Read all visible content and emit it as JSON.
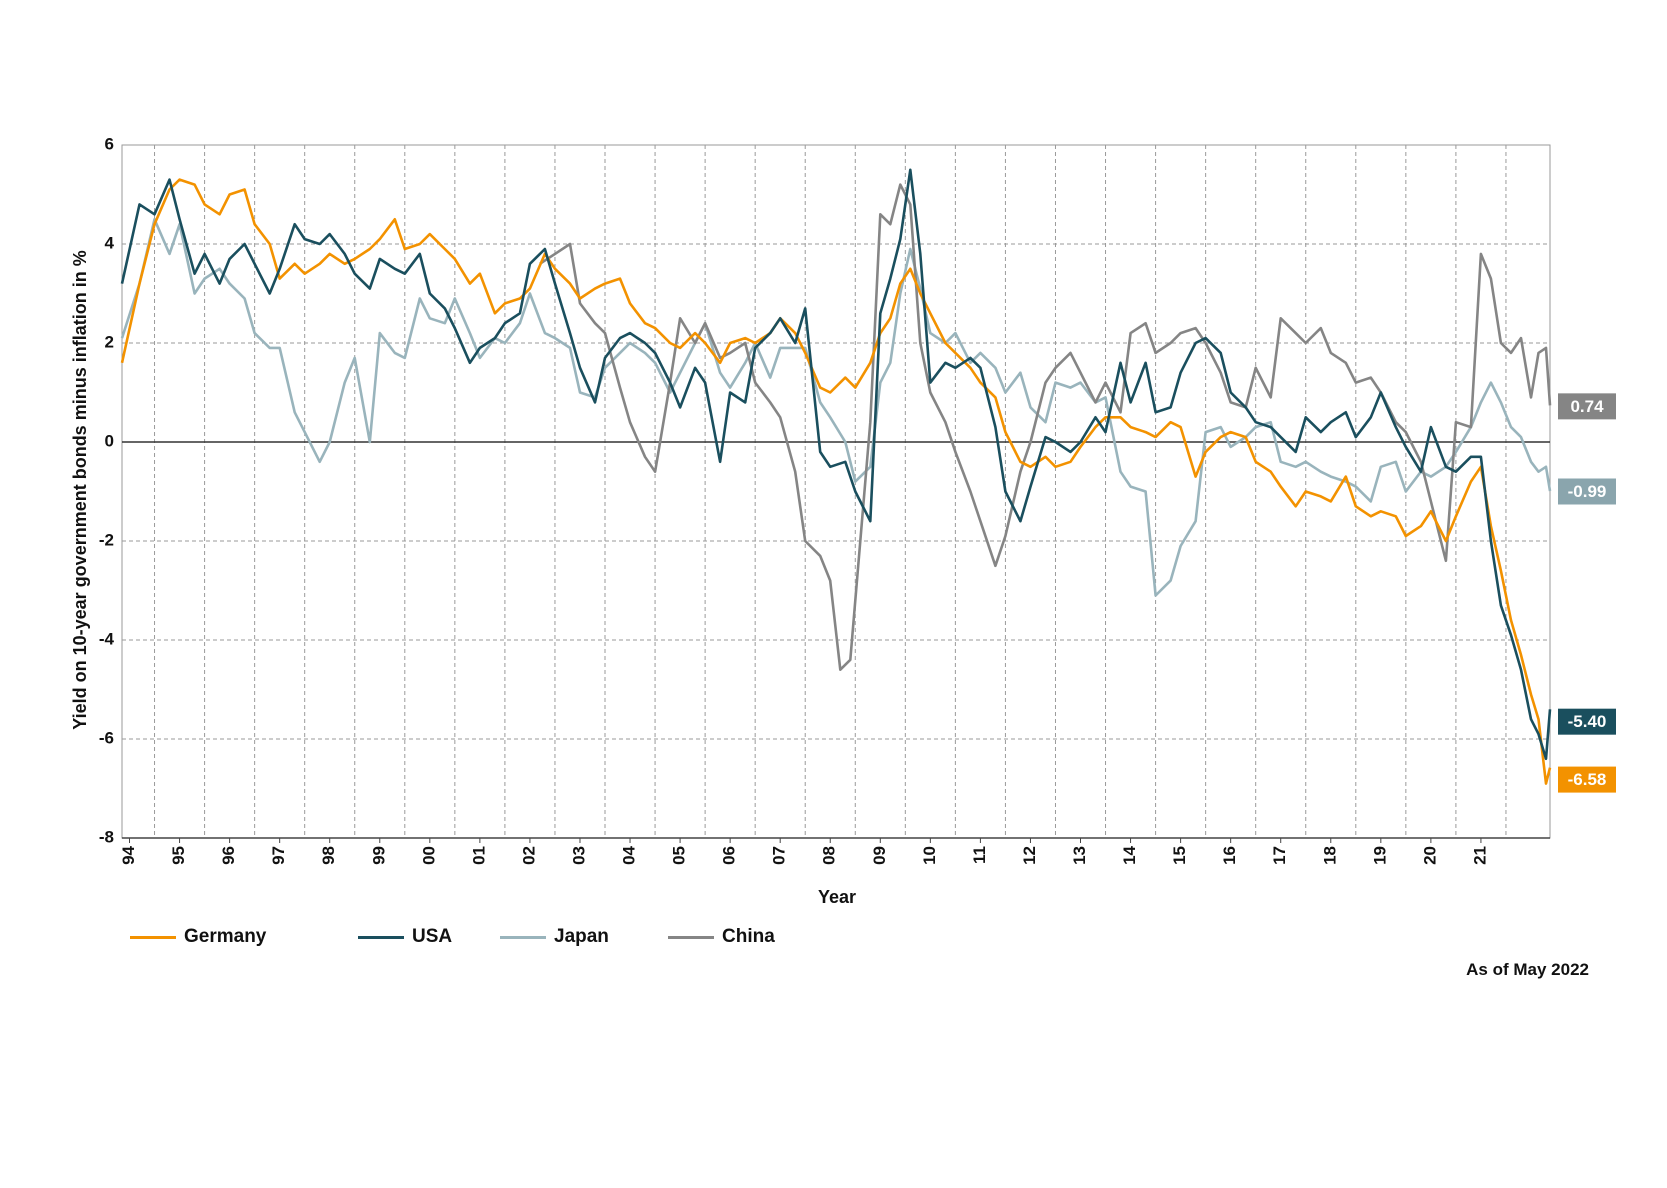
{
  "chart_data": {
    "type": "line",
    "title": "",
    "xlabel": "Year",
    "ylabel": "Yield on 10-year government bonds minus inflation in %",
    "ylim": [
      -8,
      6
    ],
    "yticks": [
      6,
      4,
      2,
      0,
      -2,
      -4,
      -6,
      -8
    ],
    "xlim": [
      1993.85,
      2022.38
    ],
    "xticks": [
      {
        "year": 1994,
        "label": "94"
      },
      {
        "year": 1995,
        "label": "95"
      },
      {
        "year": 1996,
        "label": "96"
      },
      {
        "year": 1997,
        "label": "97"
      },
      {
        "year": 1998,
        "label": "98"
      },
      {
        "year": 1999,
        "label": "99"
      },
      {
        "year": 2000,
        "label": "00"
      },
      {
        "year": 2001,
        "label": "01"
      },
      {
        "year": 2002,
        "label": "02"
      },
      {
        "year": 2003,
        "label": "03"
      },
      {
        "year": 2004,
        "label": "04"
      },
      {
        "year": 2005,
        "label": "05"
      },
      {
        "year": 2006,
        "label": "06"
      },
      {
        "year": 2007,
        "label": "07"
      },
      {
        "year": 2008,
        "label": "08"
      },
      {
        "year": 2009,
        "label": "09"
      },
      {
        "year": 2010,
        "label": "10"
      },
      {
        "year": 2011,
        "label": "11"
      },
      {
        "year": 2012,
        "label": "12"
      },
      {
        "year": 2013,
        "label": "13"
      },
      {
        "year": 2014,
        "label": "14"
      },
      {
        "year": 2015,
        "label": "15"
      },
      {
        "year": 2016,
        "label": "16"
      },
      {
        "year": 2017,
        "label": "17"
      },
      {
        "year": 2018,
        "label": "18"
      },
      {
        "year": 2019,
        "label": "19"
      },
      {
        "year": 2020,
        "label": "20"
      },
      {
        "year": 2021,
        "label": "21"
      }
    ],
    "grid": true,
    "legend_position": "bottom-left",
    "note": "As of May 2022",
    "series": [
      {
        "name": "Germany",
        "color": "#f39200",
        "end_label": "-6.58",
        "x": [
          1993.85,
          1994.2,
          1994.5,
          1994.8,
          1995.0,
          1995.3,
          1995.5,
          1995.8,
          1996.0,
          1996.3,
          1996.5,
          1996.8,
          1997.0,
          1997.3,
          1997.5,
          1997.8,
          1998.0,
          1998.3,
          1998.5,
          1998.8,
          1999.0,
          1999.3,
          1999.5,
          1999.8,
          2000.0,
          2000.3,
          2000.5,
          2000.8,
          2001.0,
          2001.3,
          2001.5,
          2001.8,
          2002.0,
          2002.3,
          2002.5,
          2002.8,
          2003.0,
          2003.3,
          2003.5,
          2003.8,
          2004.0,
          2004.3,
          2004.5,
          2004.8,
          2005.0,
          2005.3,
          2005.5,
          2005.8,
          2006.0,
          2006.3,
          2006.5,
          2006.8,
          2007.0,
          2007.3,
          2007.5,
          2007.8,
          2008.0,
          2008.3,
          2008.5,
          2008.8,
          2009.0,
          2009.2,
          2009.4,
          2009.6,
          2009.8,
          2010.0,
          2010.3,
          2010.5,
          2010.8,
          2011.0,
          2011.3,
          2011.5,
          2011.8,
          2012.0,
          2012.3,
          2012.5,
          2012.8,
          2013.0,
          2013.3,
          2013.5,
          2013.8,
          2014.0,
          2014.3,
          2014.5,
          2014.8,
          2015.0,
          2015.3,
          2015.5,
          2015.8,
          2016.0,
          2016.3,
          2016.5,
          2016.8,
          2017.0,
          2017.3,
          2017.5,
          2017.8,
          2018.0,
          2018.3,
          2018.5,
          2018.8,
          2019.0,
          2019.3,
          2019.5,
          2019.8,
          2020.0,
          2020.3,
          2020.5,
          2020.8,
          2021.0,
          2021.2,
          2021.4,
          2021.6,
          2021.8,
          2022.0,
          2022.15,
          2022.3,
          2022.38
        ],
        "y": [
          1.6,
          3.2,
          4.4,
          5.1,
          5.3,
          5.2,
          4.8,
          4.6,
          5.0,
          5.1,
          4.4,
          4.0,
          3.3,
          3.6,
          3.4,
          3.6,
          3.8,
          3.6,
          3.7,
          3.9,
          4.1,
          4.5,
          3.9,
          4.0,
          4.2,
          3.9,
          3.7,
          3.2,
          3.4,
          2.6,
          2.8,
          2.9,
          3.1,
          3.8,
          3.5,
          3.2,
          2.9,
          3.1,
          3.2,
          3.3,
          2.8,
          2.4,
          2.3,
          2.0,
          1.9,
          2.2,
          2.0,
          1.6,
          2.0,
          2.1,
          2.0,
          2.2,
          2.5,
          2.2,
          1.8,
          1.1,
          1.0,
          1.3,
          1.1,
          1.6,
          2.2,
          2.5,
          3.2,
          3.5,
          3.0,
          2.6,
          2.0,
          1.8,
          1.5,
          1.2,
          0.9,
          0.2,
          -0.4,
          -0.5,
          -0.3,
          -0.5,
          -0.4,
          -0.1,
          0.3,
          0.5,
          0.5,
          0.3,
          0.2,
          0.1,
          0.4,
          0.3,
          -0.7,
          -0.2,
          0.1,
          0.2,
          0.1,
          -0.4,
          -0.6,
          -0.9,
          -1.3,
          -1.0,
          -1.1,
          -1.2,
          -0.7,
          -1.3,
          -1.5,
          -1.4,
          -1.5,
          -1.9,
          -1.7,
          -1.4,
          -2.0,
          -1.5,
          -0.8,
          -0.5,
          -1.7,
          -2.6,
          -3.6,
          -4.3,
          -5.1,
          -5.6,
          -6.9,
          -6.58
        ]
      },
      {
        "name": "USA",
        "color": "#1a4f5e",
        "end_label": "-5.40",
        "x": [
          1993.85,
          1994.2,
          1994.5,
          1994.8,
          1995.0,
          1995.3,
          1995.5,
          1995.8,
          1996.0,
          1996.3,
          1996.5,
          1996.8,
          1997.0,
          1997.3,
          1997.5,
          1997.8,
          1998.0,
          1998.3,
          1998.5,
          1998.8,
          1999.0,
          1999.3,
          1999.5,
          1999.8,
          2000.0,
          2000.3,
          2000.5,
          2000.8,
          2001.0,
          2001.3,
          2001.5,
          2001.8,
          2002.0,
          2002.3,
          2002.5,
          2002.8,
          2003.0,
          2003.3,
          2003.5,
          2003.8,
          2004.0,
          2004.3,
          2004.5,
          2004.8,
          2005.0,
          2005.3,
          2005.5,
          2005.8,
          2006.0,
          2006.3,
          2006.5,
          2006.8,
          2007.0,
          2007.3,
          2007.5,
          2007.8,
          2008.0,
          2008.3,
          2008.5,
          2008.8,
          2009.0,
          2009.2,
          2009.4,
          2009.6,
          2009.8,
          2010.0,
          2010.3,
          2010.5,
          2010.8,
          2011.0,
          2011.3,
          2011.5,
          2011.8,
          2012.0,
          2012.3,
          2012.5,
          2012.8,
          2013.0,
          2013.3,
          2013.5,
          2013.8,
          2014.0,
          2014.3,
          2014.5,
          2014.8,
          2015.0,
          2015.3,
          2015.5,
          2015.8,
          2016.0,
          2016.3,
          2016.5,
          2016.8,
          2017.0,
          2017.3,
          2017.5,
          2017.8,
          2018.0,
          2018.3,
          2018.5,
          2018.8,
          2019.0,
          2019.3,
          2019.5,
          2019.8,
          2020.0,
          2020.3,
          2020.5,
          2020.8,
          2021.0,
          2021.2,
          2021.4,
          2021.6,
          2021.8,
          2022.0,
          2022.15,
          2022.3,
          2022.38
        ],
        "y": [
          3.2,
          4.8,
          4.6,
          5.3,
          4.5,
          3.4,
          3.8,
          3.2,
          3.7,
          4.0,
          3.6,
          3.0,
          3.5,
          4.4,
          4.1,
          4.0,
          4.2,
          3.8,
          3.4,
          3.1,
          3.7,
          3.5,
          3.4,
          3.8,
          3.0,
          2.7,
          2.3,
          1.6,
          1.9,
          2.1,
          2.4,
          2.6,
          3.6,
          3.9,
          3.2,
          2.2,
          1.5,
          0.8,
          1.7,
          2.1,
          2.2,
          2.0,
          1.8,
          1.2,
          0.7,
          1.5,
          1.2,
          -0.4,
          1.0,
          0.8,
          1.9,
          2.2,
          2.5,
          2.0,
          2.7,
          -0.2,
          -0.5,
          -0.4,
          -1.0,
          -1.6,
          2.6,
          3.3,
          4.1,
          5.5,
          3.8,
          1.2,
          1.6,
          1.5,
          1.7,
          1.5,
          0.3,
          -1.0,
          -1.6,
          -0.9,
          0.1,
          0.0,
          -0.2,
          0.0,
          0.5,
          0.2,
          1.6,
          0.8,
          1.6,
          0.6,
          0.7,
          1.4,
          2.0,
          2.1,
          1.8,
          1.0,
          0.7,
          0.4,
          0.3,
          0.1,
          -0.2,
          0.5,
          0.2,
          0.4,
          0.6,
          0.1,
          0.5,
          1.0,
          0.3,
          -0.1,
          -0.6,
          0.3,
          -0.5,
          -0.6,
          -0.3,
          -0.3,
          -2.0,
          -3.3,
          -3.9,
          -4.6,
          -5.6,
          -5.9,
          -6.4,
          -5.4
        ]
      },
      {
        "name": "Japan",
        "color": "#99b4bc",
        "end_label": "-0.99",
        "x": [
          1993.85,
          1994.2,
          1994.5,
          1994.8,
          1995.0,
          1995.3,
          1995.5,
          1995.8,
          1996.0,
          1996.3,
          1996.5,
          1996.8,
          1997.0,
          1997.3,
          1997.5,
          1997.8,
          1998.0,
          1998.3,
          1998.5,
          1998.8,
          1999.0,
          1999.3,
          1999.5,
          1999.8,
          2000.0,
          2000.3,
          2000.5,
          2000.8,
          2001.0,
          2001.3,
          2001.5,
          2001.8,
          2002.0,
          2002.3,
          2002.5,
          2002.8,
          2003.0,
          2003.3,
          2003.5,
          2003.8,
          2004.0,
          2004.3,
          2004.5,
          2004.8,
          2005.0,
          2005.3,
          2005.5,
          2005.8,
          2006.0,
          2006.3,
          2006.5,
          2006.8,
          2007.0,
          2007.3,
          2007.5,
          2007.8,
          2008.0,
          2008.3,
          2008.5,
          2008.8,
          2009.0,
          2009.2,
          2009.4,
          2009.6,
          2009.8,
          2010.0,
          2010.3,
          2010.5,
          2010.8,
          2011.0,
          2011.3,
          2011.5,
          2011.8,
          2012.0,
          2012.3,
          2012.5,
          2012.8,
          2013.0,
          2013.3,
          2013.5,
          2013.8,
          2014.0,
          2014.3,
          2014.5,
          2014.8,
          2015.0,
          2015.3,
          2015.5,
          2015.8,
          2016.0,
          2016.3,
          2016.5,
          2016.8,
          2017.0,
          2017.3,
          2017.5,
          2017.8,
          2018.0,
          2018.3,
          2018.5,
          2018.8,
          2019.0,
          2019.3,
          2019.5,
          2019.8,
          2020.0,
          2020.3,
          2020.5,
          2020.8,
          2021.0,
          2021.2,
          2021.4,
          2021.6,
          2021.8,
          2022.0,
          2022.15,
          2022.3,
          2022.38
        ],
        "y": [
          2.1,
          3.2,
          4.5,
          3.8,
          4.4,
          3.0,
          3.3,
          3.5,
          3.2,
          2.9,
          2.2,
          1.9,
          1.9,
          0.6,
          0.2,
          -0.4,
          0.0,
          1.2,
          1.7,
          0.0,
          2.2,
          1.8,
          1.7,
          2.9,
          2.5,
          2.4,
          2.9,
          2.2,
          1.7,
          2.1,
          2.0,
          2.4,
          3.0,
          2.2,
          2.1,
          1.9,
          1.0,
          0.9,
          1.5,
          1.8,
          2.0,
          1.8,
          1.6,
          1.0,
          1.4,
          2.0,
          2.4,
          1.4,
          1.1,
          1.6,
          2.0,
          1.3,
          1.9,
          1.9,
          1.9,
          0.8,
          0.5,
          0.0,
          -0.8,
          -0.5,
          1.2,
          1.6,
          3.0,
          3.9,
          3.1,
          2.2,
          2.0,
          2.2,
          1.6,
          1.8,
          1.5,
          1.0,
          1.4,
          0.7,
          0.4,
          1.2,
          1.1,
          1.2,
          0.8,
          0.9,
          -0.6,
          -0.9,
          -1.0,
          -3.1,
          -2.8,
          -2.1,
          -1.6,
          0.2,
          0.3,
          -0.1,
          0.1,
          0.3,
          0.4,
          -0.4,
          -0.5,
          -0.4,
          -0.6,
          -0.7,
          -0.8,
          -0.9,
          -1.2,
          -0.5,
          -0.4,
          -1.0,
          -0.6,
          -0.7,
          -0.5,
          -0.2,
          0.3,
          0.8,
          1.2,
          0.8,
          0.3,
          0.1,
          -0.4,
          -0.6,
          -0.5,
          -0.99
        ]
      },
      {
        "name": "China",
        "color": "#858585",
        "end_label": "0.74",
        "x": [
          2002.2,
          2002.5,
          2002.8,
          2003.0,
          2003.3,
          2003.5,
          2003.8,
          2004.0,
          2004.3,
          2004.5,
          2004.8,
          2005.0,
          2005.3,
          2005.5,
          2005.8,
          2006.0,
          2006.3,
          2006.5,
          2006.8,
          2007.0,
          2007.3,
          2007.5,
          2007.8,
          2008.0,
          2008.2,
          2008.4,
          2008.6,
          2008.8,
          2009.0,
          2009.2,
          2009.4,
          2009.6,
          2009.8,
          2010.0,
          2010.3,
          2010.5,
          2010.8,
          2011.0,
          2011.3,
          2011.5,
          2011.8,
          2012.0,
          2012.3,
          2012.5,
          2012.8,
          2013.0,
          2013.3,
          2013.5,
          2013.8,
          2014.0,
          2014.3,
          2014.5,
          2014.8,
          2015.0,
          2015.3,
          2015.5,
          2015.8,
          2016.0,
          2016.3,
          2016.5,
          2016.8,
          2017.0,
          2017.3,
          2017.5,
          2017.8,
          2018.0,
          2018.3,
          2018.5,
          2018.8,
          2019.0,
          2019.3,
          2019.5,
          2019.8,
          2020.0,
          2020.3,
          2020.5,
          2020.8,
          2021.0,
          2021.2,
          2021.4,
          2021.6,
          2021.8,
          2022.0,
          2022.15,
          2022.3,
          2022.38
        ],
        "y": [
          3.6,
          3.8,
          4.0,
          2.8,
          2.4,
          2.2,
          1.1,
          0.4,
          -0.3,
          -0.6,
          1.2,
          2.5,
          2.0,
          2.4,
          1.7,
          1.8,
          2.0,
          1.2,
          0.8,
          0.5,
          -0.6,
          -2.0,
          -2.3,
          -2.8,
          -4.6,
          -4.4,
          -2.0,
          0.4,
          4.6,
          4.4,
          5.2,
          4.8,
          2.0,
          1.0,
          0.4,
          -0.2,
          -1.0,
          -1.6,
          -2.5,
          -1.9,
          -0.6,
          0.0,
          1.2,
          1.5,
          1.8,
          1.4,
          0.8,
          1.2,
          0.6,
          2.2,
          2.4,
          1.8,
          2.0,
          2.2,
          2.3,
          2.0,
          1.4,
          0.8,
          0.7,
          1.5,
          0.9,
          2.5,
          2.2,
          2.0,
          2.3,
          1.8,
          1.6,
          1.2,
          1.3,
          1.0,
          0.4,
          0.2,
          -0.4,
          -1.2,
          -2.4,
          0.4,
          0.3,
          3.8,
          3.3,
          2.0,
          1.8,
          2.1,
          0.9,
          1.8,
          1.9,
          0.74
        ]
      }
    ]
  }
}
